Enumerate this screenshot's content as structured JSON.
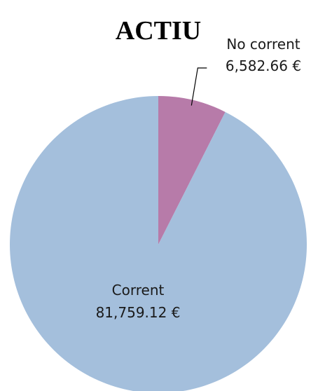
{
  "chart_data": {
    "type": "pie",
    "title": "ACTIU",
    "categories": [
      "No corrent",
      "Corrent"
    ],
    "values": [
      6582.66,
      81759.12
    ],
    "value_labels": [
      "6,582.66 €",
      "81,759.12 €"
    ],
    "colors": [
      "#b77ba9",
      "#a4bfdc"
    ]
  }
}
